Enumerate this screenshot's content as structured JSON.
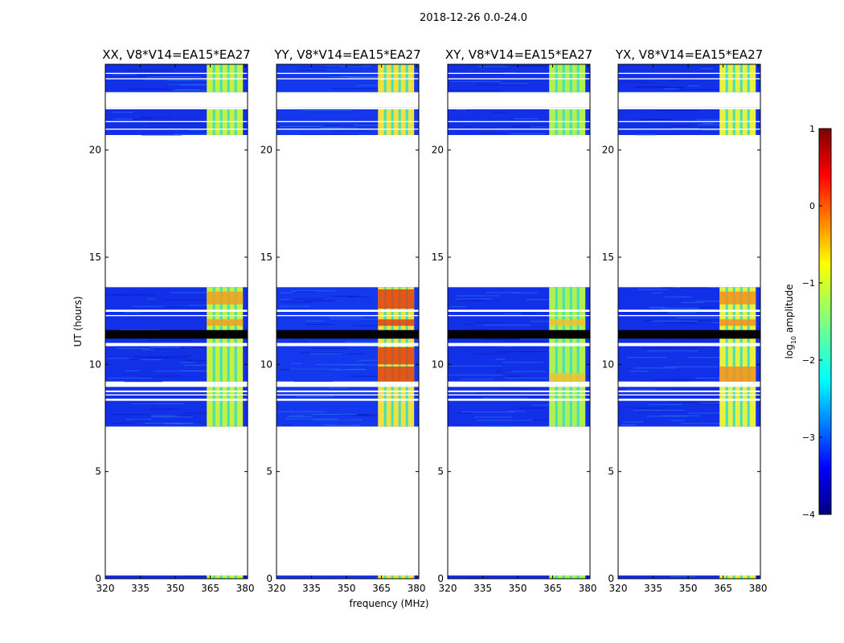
{
  "figure": {
    "suptitle": "2018-12-26 0.0-24.0",
    "xlabel": "frequency (MHz)",
    "ylabel": "UT (hours)",
    "colorbar_label_prefix": "log",
    "colorbar_label_sub": "10",
    "colorbar_label_suffix": " amplitude"
  },
  "chart_data": {
    "type": "heatmap",
    "colormap": "jet",
    "color_range": [
      -4,
      1
    ],
    "colorbar_ticks": [
      1,
      0,
      -1,
      -2,
      -3,
      -4
    ],
    "colorbar_tick_labels": [
      "1",
      "0",
      "−1",
      "−2",
      "−3",
      "−4"
    ],
    "xlim": [
      320,
      381
    ],
    "ylim": [
      0,
      24
    ],
    "xticks": [
      320,
      335,
      350,
      365,
      380
    ],
    "yticks": [
      0,
      5,
      10,
      15,
      20
    ],
    "panels": [
      {
        "title": "XX, V8*V14=EA15*EA27",
        "low_color": "#1230e8",
        "high_color": "#c8f040",
        "bright_rows": [
          [
            11.8,
            12.1
          ],
          [
            12.8,
            13.4
          ]
        ],
        "bright_color": "#f0a020"
      },
      {
        "title": "YY, V8*V14=EA15*EA27",
        "low_color": "#1438ee",
        "high_color": "#f0e040",
        "bright_rows": [
          [
            9.2,
            9.9
          ],
          [
            10.0,
            10.8
          ],
          [
            11.8,
            12.1
          ],
          [
            12.6,
            13.5
          ]
        ],
        "bright_color": "#e04010"
      },
      {
        "title": "XY, V8*V14=EA15*EA27",
        "low_color": "#1230e8",
        "high_color": "#b0f050",
        "bright_rows": [
          [
            9.2,
            9.6
          ],
          [
            11.8,
            12.1
          ]
        ],
        "bright_color": "#f0c030"
      },
      {
        "title": "YX, V8*V14=EA15*EA27",
        "low_color": "#1230e8",
        "high_color": "#e8f040",
        "bright_rows": [
          [
            9.2,
            9.9
          ],
          [
            11.8,
            12.1
          ],
          [
            12.8,
            13.4
          ]
        ],
        "bright_color": "#f09020"
      }
    ],
    "data_segments_ut": [
      [
        0.0,
        0.15
      ],
      [
        7.1,
        9.0
      ],
      [
        9.2,
        13.6
      ],
      [
        20.7,
        22.0
      ],
      [
        22.7,
        24.0
      ]
    ],
    "flagged_gap_rows_ut": [
      [
        8.3,
        8.4
      ],
      [
        8.55,
        8.6
      ],
      [
        8.7,
        8.78
      ],
      [
        8.95,
        9.15
      ],
      [
        10.85,
        11.0
      ],
      [
        12.25,
        12.3
      ],
      [
        12.45,
        12.55
      ],
      [
        21.9,
        22.0
      ],
      [
        20.95,
        21.0
      ],
      [
        21.3,
        21.35
      ],
      [
        23.3,
        23.35
      ],
      [
        23.55,
        23.6
      ]
    ],
    "dead_rows_ut": [
      [
        11.2,
        11.6
      ]
    ],
    "bright_band_freq_mhz": [
      363.5,
      379
    ]
  }
}
